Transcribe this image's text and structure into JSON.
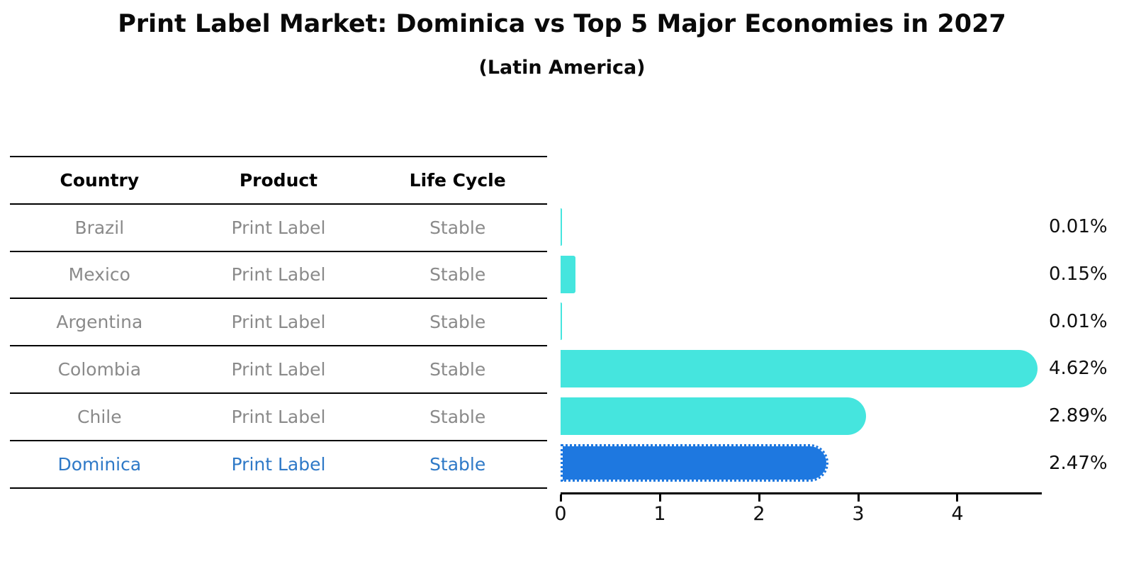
{
  "title": "Print Label Market: Dominica vs Top 5 Major Economies in 2027",
  "subtitle": "(Latin America)",
  "table": {
    "headers": [
      "Country",
      "Product",
      "Life Cycle"
    ],
    "rows": [
      {
        "country": "Brazil",
        "product": "Print Label",
        "life_cycle": "Stable",
        "highlight": false
      },
      {
        "country": "Mexico",
        "product": "Print Label",
        "life_cycle": "Stable",
        "highlight": false
      },
      {
        "country": "Argentina",
        "product": "Print Label",
        "life_cycle": "Stable",
        "highlight": false
      },
      {
        "country": "Colombia",
        "product": "Print Label",
        "life_cycle": "Stable",
        "highlight": false
      },
      {
        "country": "Chile",
        "product": "Print Label",
        "life_cycle": "Stable",
        "highlight": false
      },
      {
        "country": "Dominica",
        "product": "Print Label",
        "life_cycle": "Stable",
        "highlight": true
      }
    ]
  },
  "chart_data": {
    "type": "bar",
    "orientation": "horizontal",
    "title": "Print Label Market: Dominica vs Top 5 Major Economies in 2027",
    "subtitle": "(Latin America)",
    "categories": [
      "Brazil",
      "Mexico",
      "Argentina",
      "Colombia",
      "Chile",
      "Dominica"
    ],
    "values": [
      0.01,
      0.15,
      0.01,
      4.62,
      2.89,
      2.47
    ],
    "value_labels": [
      "0.01%",
      "0.15%",
      "0.01%",
      "4.62%",
      "2.89%",
      "2.47%"
    ],
    "x_ticks": [
      0,
      1,
      2,
      3,
      4
    ],
    "xlim": [
      0,
      4.85
    ],
    "xlabel": "",
    "ylabel": "",
    "grid": false,
    "legend": false,
    "bar_color": "#45e5de",
    "highlight_color": "#1e78e0",
    "highlight_index": 5,
    "highlight_style": "dotted-border"
  },
  "colors": {
    "row_text": "#8a8a8a",
    "highlight_text": "#2e79c7",
    "header_text": "#000000",
    "axis": "#000000"
  }
}
